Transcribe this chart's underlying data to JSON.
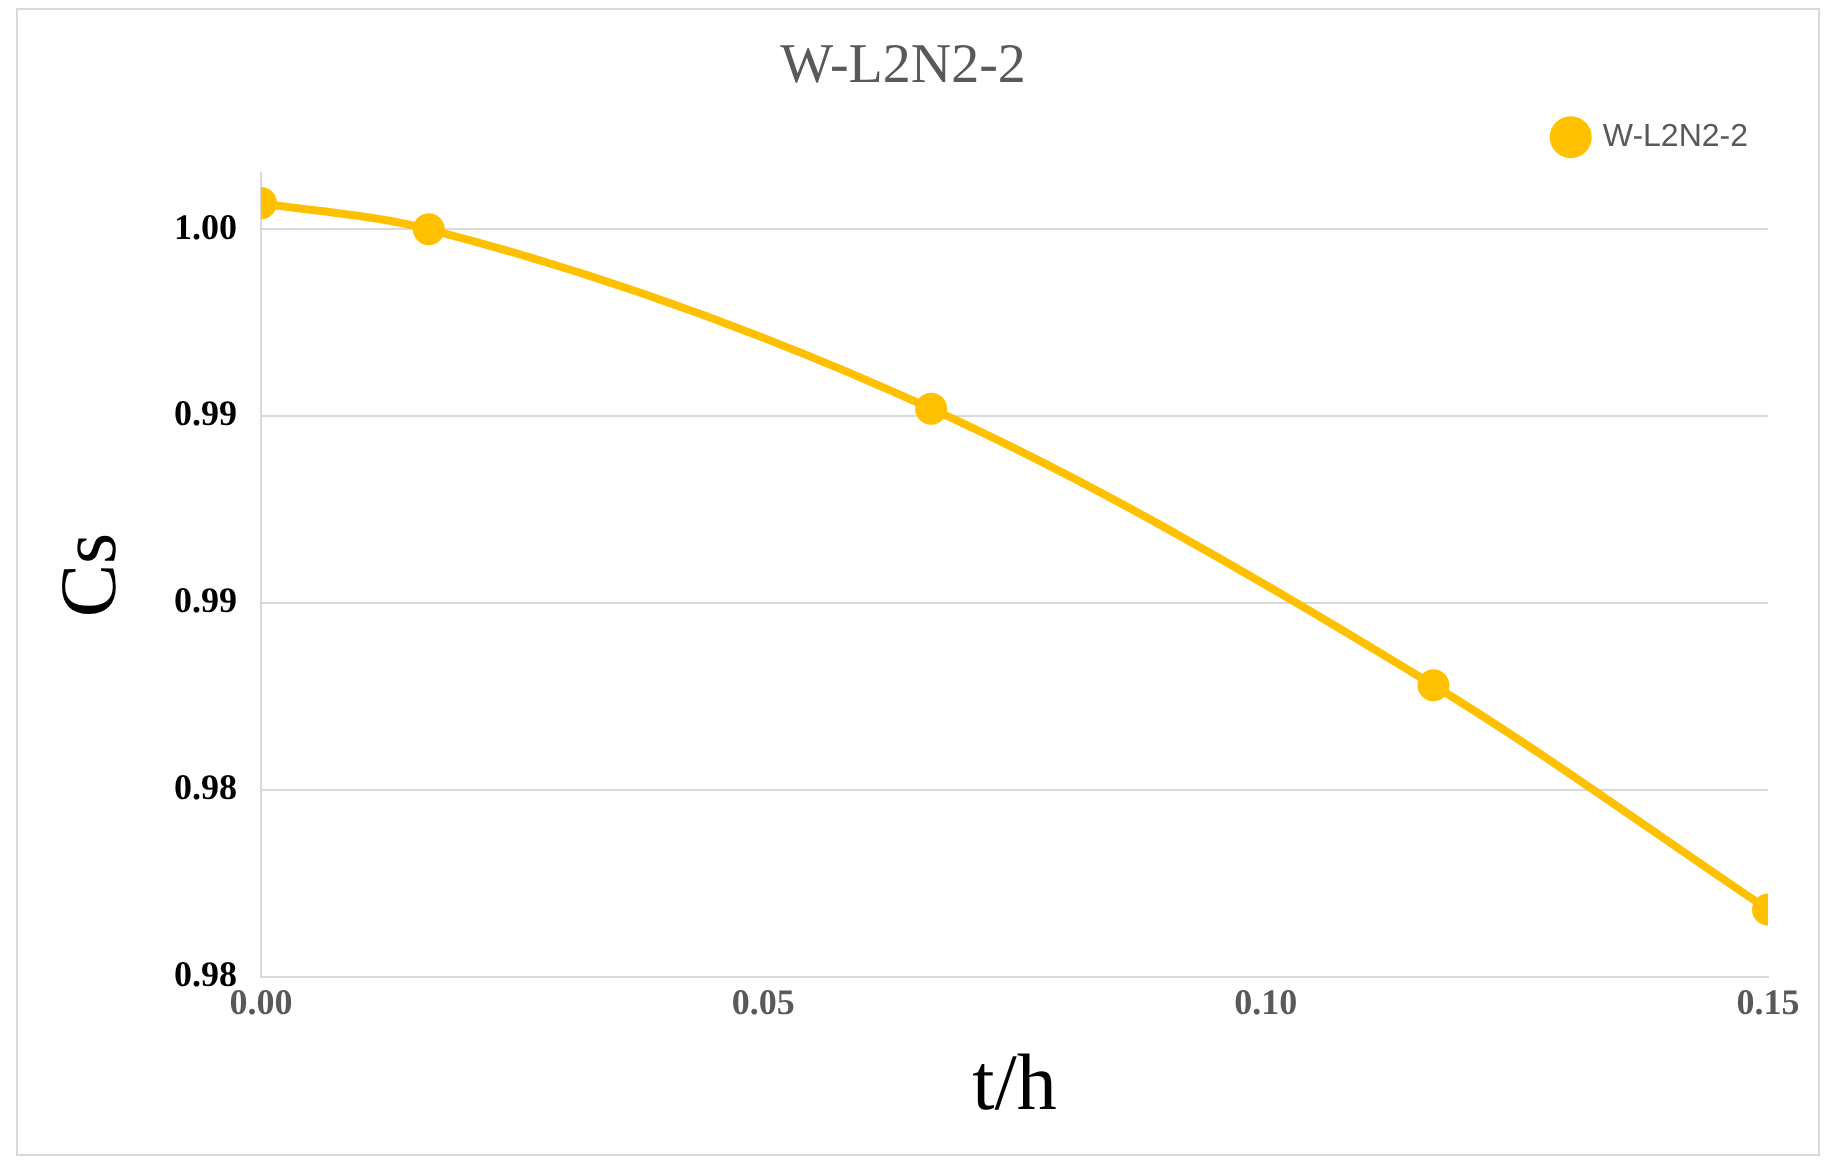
{
  "chart_data": {
    "type": "line",
    "title": "W-L2N2-2",
    "xlabel": "t/h",
    "ylabel": "Cs",
    "x": [
      0,
      0.0167,
      0.0667,
      0.1167,
      0.15
    ],
    "series": [
      {
        "name": "W-L2N2-2",
        "color": "#ffc000",
        "values": [
          1.0007,
          1.0,
          0.9952,
          0.9878,
          0.9818
        ]
      }
    ],
    "xlim": [
      0,
      0.15
    ],
    "xticks": [
      {
        "value": 0,
        "label": "0.00"
      },
      {
        "value": 0.05,
        "label": "0.05"
      },
      {
        "value": 0.1,
        "label": "0.10"
      },
      {
        "value": 0.15,
        "label": "0.15"
      }
    ],
    "ylim": [
      0.98,
      1.0015
    ],
    "yticks": [
      {
        "value": 0.98,
        "label": "0.98"
      },
      {
        "value": 0.985,
        "label": "0.98"
      },
      {
        "value": 0.99,
        "label": "0.99"
      },
      {
        "value": 0.995,
        "label": "0.99"
      },
      {
        "value": 1.0,
        "label": "1.00"
      }
    ],
    "grid": "y",
    "legend": "top right",
    "marker": "circle",
    "line_style": "solid"
  }
}
